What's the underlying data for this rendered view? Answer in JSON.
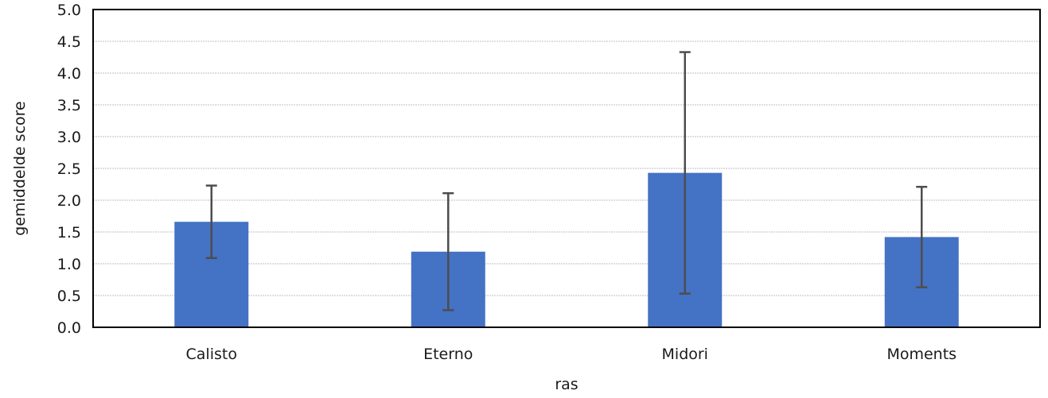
{
  "chart_data": {
    "type": "bar",
    "categories": [
      "Calisto",
      "Eterno",
      "Midori",
      "Moments"
    ],
    "series": [
      {
        "values": [
          1.66,
          1.19,
          2.43,
          1.42
        ],
        "error": [
          0.57,
          0.92,
          1.9,
          0.79
        ]
      }
    ],
    "xlabel": "ras",
    "ylabel": "gemiddelde score",
    "ylim": [
      0,
      5
    ],
    "yticks": [
      "0.0",
      "0.5",
      "1.0",
      "1.5",
      "2.0",
      "2.5",
      "3.0",
      "3.5",
      "4.0",
      "4.5",
      "5.0"
    ],
    "grid": true,
    "legend": "none",
    "colors": {
      "bar": "#4472c4",
      "error_bar": "#4d4d4d",
      "grid": "#bfbfbf"
    }
  }
}
